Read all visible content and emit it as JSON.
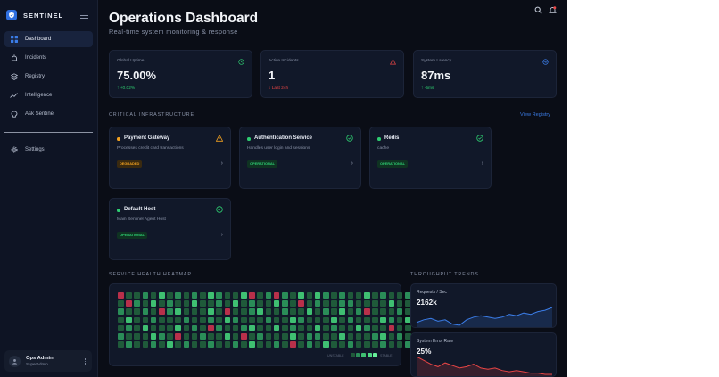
{
  "colors": {
    "accent": "#3b7de8",
    "success": "#2ecc71",
    "danger": "#e84545",
    "warning": "#f0a020",
    "background": "#0a0d16",
    "panel": "#111829"
  },
  "sidebar": {
    "brand": "SENTINEL",
    "nav": [
      {
        "label": "Dashboard",
        "icon": "grid-icon"
      },
      {
        "label": "Incidents",
        "icon": "siren-icon"
      },
      {
        "label": "Registry",
        "icon": "layers-icon"
      },
      {
        "label": "Intelligence",
        "icon": "trend-icon"
      },
      {
        "label": "Ask Sentinel",
        "icon": "brain-icon"
      }
    ],
    "settings": {
      "label": "Settings",
      "icon": "gear-icon"
    },
    "user": {
      "name": "Ops Admin",
      "role": "SuperAdmin"
    }
  },
  "header": {
    "title": "Operations Dashboard",
    "subtitle": "Real-time system monitoring & response"
  },
  "stats": [
    {
      "label": "Global Uptime",
      "value": "75.00%",
      "delta": "+0.02%",
      "delta_dir": "up",
      "icon": "clock-icon"
    },
    {
      "label": "Active Incidents",
      "value": "1",
      "delta": "Last 24h",
      "delta_dir": "down",
      "icon": "alert-triangle-icon"
    },
    {
      "label": "System Latency",
      "value": "87ms",
      "delta": "-5ms",
      "delta_dir": "up",
      "icon": "activity-icon"
    }
  ],
  "infrastructure": {
    "title": "CRITICAL INFRASTRUCTURE",
    "view_link": "View Registry",
    "services": [
      {
        "name": "Payment Gateway",
        "description": "Processes credit card transactions",
        "status": "DEGRADED",
        "state": "degraded"
      },
      {
        "name": "Authentication Service",
        "description": "Handles user login and sessions",
        "status": "OPERATIONAL",
        "state": "ok"
      },
      {
        "name": "Redis",
        "description": "cache",
        "status": "OPERATIONAL",
        "state": "ok"
      },
      {
        "name": "Default Host",
        "description": "Main Sentinel Agent Host",
        "status": "OPERATIONAL",
        "state": "ok"
      }
    ]
  },
  "heatmap": {
    "title": "SERVICE HEALTH HEATMAP",
    "legend_low": "UNSTABLE",
    "legend_high": "STABLE",
    "rows": [
      [
        4,
        0,
        0,
        1,
        0,
        2,
        0,
        1,
        0,
        1,
        0,
        2,
        1,
        0,
        0,
        2,
        4,
        0,
        1,
        4,
        1,
        0,
        2,
        0,
        2,
        1,
        0,
        1,
        0,
        0,
        2,
        0,
        1,
        0,
        0,
        1
      ],
      [
        0,
        4,
        1,
        0,
        2,
        0,
        1,
        0,
        0,
        2,
        0,
        0,
        1,
        0,
        2,
        0,
        1,
        0,
        0,
        2,
        1,
        0,
        4,
        0,
        1,
        0,
        0,
        1,
        1,
        0,
        0,
        0,
        0,
        2,
        0,
        0
      ],
      [
        1,
        0,
        0,
        1,
        0,
        4,
        1,
        2,
        0,
        0,
        0,
        2,
        0,
        4,
        0,
        0,
        1,
        2,
        0,
        0,
        1,
        0,
        0,
        2,
        0,
        1,
        0,
        2,
        0,
        1,
        4,
        0,
        0,
        0,
        1,
        0
      ],
      [
        0,
        2,
        0,
        0,
        1,
        0,
        0,
        0,
        1,
        0,
        0,
        1,
        0,
        2,
        1,
        0,
        0,
        0,
        1,
        0,
        0,
        2,
        1,
        0,
        0,
        0,
        2,
        0,
        1,
        0,
        0,
        0,
        2,
        1,
        0,
        2
      ],
      [
        0,
        1,
        0,
        2,
        0,
        0,
        0,
        2,
        0,
        1,
        0,
        4,
        1,
        0,
        0,
        1,
        2,
        0,
        0,
        2,
        0,
        1,
        0,
        0,
        2,
        0,
        1,
        0,
        0,
        2,
        1,
        0,
        0,
        4,
        0,
        0
      ],
      [
        1,
        0,
        0,
        0,
        2,
        1,
        0,
        4,
        0,
        0,
        1,
        0,
        0,
        2,
        0,
        4,
        0,
        1,
        0,
        0,
        0,
        2,
        0,
        1,
        1,
        0,
        0,
        2,
        0,
        0,
        0,
        1,
        2,
        0,
        1,
        0
      ],
      [
        0,
        1,
        0,
        0,
        1,
        0,
        2,
        0,
        1,
        0,
        0,
        1,
        0,
        0,
        1,
        0,
        2,
        0,
        0,
        1,
        0,
        4,
        0,
        1,
        0,
        2,
        0,
        0,
        1,
        0,
        0,
        0,
        1,
        0,
        0,
        1
      ]
    ]
  },
  "trends": {
    "title": "THROUGHPUT TRENDS",
    "cards": [
      {
        "label": "Requests / Sec",
        "value": "2162k",
        "color": "#3b7de8",
        "series": [
          10,
          12,
          13,
          11,
          12,
          9,
          8,
          12,
          14,
          15,
          14,
          13,
          14,
          16,
          15,
          17,
          16,
          18,
          19,
          21
        ]
      },
      {
        "label": "System Error Rate",
        "value": "25%",
        "color": "#e84545",
        "series": [
          18,
          15,
          12,
          10,
          13,
          11,
          9,
          10,
          12,
          9,
          8,
          9,
          7,
          6,
          7,
          6,
          5,
          5,
          4,
          4
        ]
      }
    ]
  }
}
